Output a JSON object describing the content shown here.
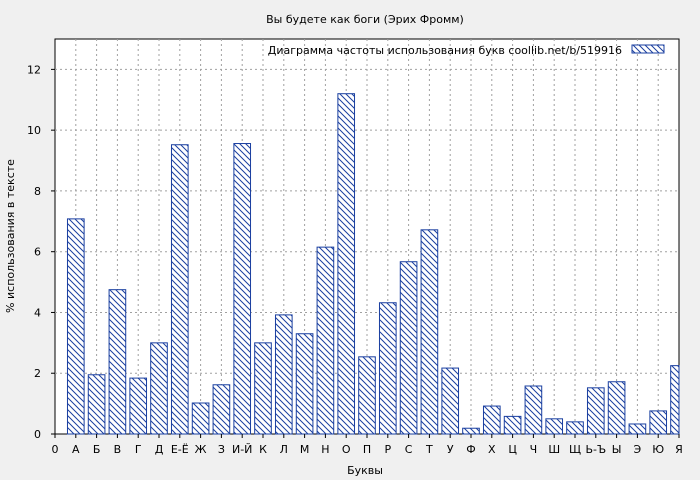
{
  "chart_data": {
    "type": "bar",
    "title": "Вы будете как боги (Эрих Фромм)",
    "xlabel": "Буквы",
    "ylabel": "% использования в тексте",
    "legend_label": "Диаграмма частоты использования букв  coollib.net/b/519916",
    "legend_position": "top-right",
    "grid": true,
    "ylim": [
      0,
      13
    ],
    "yticks": [
      0,
      2,
      4,
      6,
      8,
      10,
      12
    ],
    "x_tick_labels": [
      "0",
      "А",
      "Б",
      "В",
      "Г",
      "Д",
      "Е-Ё",
      "Ж",
      "З",
      "И-Й",
      "К",
      "Л",
      "М",
      "Н",
      "О",
      "П",
      "Р",
      "С",
      "Т",
      "У",
      "Ф",
      "Х",
      "Ц",
      "Ч",
      "Ш",
      "Щ",
      "Ь-Ъ",
      "Ы",
      "Э",
      "Ю",
      "Я"
    ],
    "categories": [
      "А",
      "Б",
      "В",
      "Г",
      "Д",
      "Е-Ё",
      "Ж",
      "З",
      "И-Й",
      "К",
      "Л",
      "М",
      "Н",
      "О",
      "П",
      "Р",
      "С",
      "Т",
      "У",
      "Ф",
      "Х",
      "Ц",
      "Ч",
      "Ш",
      "Щ",
      "Ь-Ъ",
      "Ы",
      "Э",
      "Ю",
      "Я"
    ],
    "values": [
      7.08,
      1.95,
      4.75,
      1.84,
      3.0,
      9.52,
      1.02,
      1.62,
      9.56,
      3.0,
      3.92,
      3.3,
      6.15,
      11.2,
      2.54,
      4.32,
      5.67,
      6.72,
      2.17,
      0.19,
      0.92,
      0.58,
      1.58,
      0.5,
      0.4,
      1.52,
      1.72,
      0.33,
      0.76,
      2.25
    ],
    "colors": {
      "bar_stroke": "#1a3fa0",
      "hatch": "#1a3fa0",
      "bar_fill": "#ffffff",
      "background": "#f0f0f0",
      "plot_background": "#ffffff",
      "grid": "#a0a0a0"
    }
  }
}
